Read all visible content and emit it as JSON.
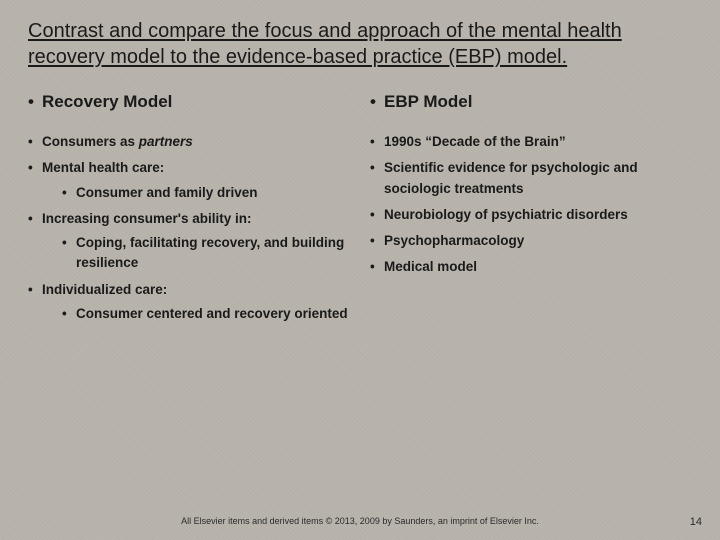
{
  "title": "Contrast and compare the focus and approach of the mental health recovery model to the evidence-based practice (EBP) model.",
  "left": {
    "header": "Recovery Model",
    "b1a": "Consumers as ",
    "b1b": "partners",
    "b2": "Mental health care:",
    "b2a": "Consumer and family driven",
    "b3": "Increasing consumer's ability in:",
    "b3a": "Coping, facilitating recovery, and building resilience",
    "b4": "Individualized care:",
    "b4a": "Consumer centered and recovery oriented"
  },
  "right": {
    "header": "EBP Model",
    "b1": "1990s “Decade of the Brain”",
    "b2": "Scientific evidence for psychologic and sociologic treatments",
    "b3": "Neurobiology of psychiatric disorders",
    "b4": "Psychopharmacology",
    "b5": "Medical model"
  },
  "footer": "All Elsevier items and derived items © 2013, 2009 by Saunders, an imprint of Elsevier Inc.",
  "pagenum": "14"
}
